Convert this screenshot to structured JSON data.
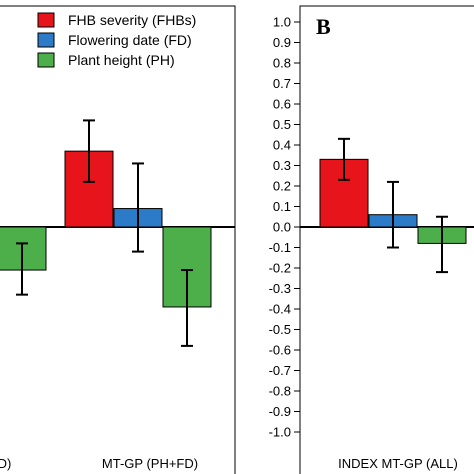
{
  "chart_data": [
    {
      "panel": "",
      "type": "bar",
      "categories": [
        "…D)",
        "MT-GP (PH+FD)"
      ],
      "series": [
        {
          "name": "FHB severity (FHBs)",
          "color": "#e8141b",
          "values": [
            null,
            0.37
          ],
          "err_low": [
            null,
            0.22
          ],
          "err_high": [
            null,
            0.52
          ]
        },
        {
          "name": "Flowering date (FD)",
          "color": "#2b7bc8",
          "values": [
            null,
            0.09
          ],
          "err_low": [
            null,
            -0.12
          ],
          "err_high": [
            null,
            0.31
          ]
        },
        {
          "name": "Plant height (PH)",
          "color": "#4daf4a",
          "values": [
            -0.21,
            -0.39
          ],
          "err_low": [
            -0.33,
            -0.58
          ],
          "err_high": [
            -0.08,
            -0.21
          ]
        }
      ],
      "ylim": [
        -1.0,
        1.0
      ],
      "legend_position": "top-left"
    },
    {
      "panel": "B",
      "type": "bar",
      "categories": [
        "INDEX MT-GP (ALL)"
      ],
      "series": [
        {
          "name": "FHB severity (FHBs)",
          "color": "#e8141b",
          "values": [
            0.33
          ],
          "err_low": [
            0.23
          ],
          "err_high": [
            0.43
          ]
        },
        {
          "name": "Flowering date (FD)",
          "color": "#2b7bc8",
          "values": [
            0.06
          ],
          "err_low": [
            -0.1
          ],
          "err_high": [
            0.22
          ]
        },
        {
          "name": "Plant height (PH)",
          "color": "#4daf4a",
          "values": [
            -0.08
          ],
          "err_low": [
            -0.22
          ],
          "err_high": [
            0.05
          ]
        }
      ],
      "ylim": [
        -1.0,
        1.0
      ],
      "yticks": [
        "1.0",
        "0.9",
        "0.8",
        "0.7",
        "0.6",
        "0.5",
        "0.4",
        "0.3",
        "0.2",
        "0.1",
        "0.0",
        "-0.1",
        "-0.2",
        "-0.3",
        "-0.4",
        "-0.5",
        "-0.6",
        "-0.7",
        "-0.8",
        "-0.9",
        "-1.0"
      ]
    }
  ]
}
